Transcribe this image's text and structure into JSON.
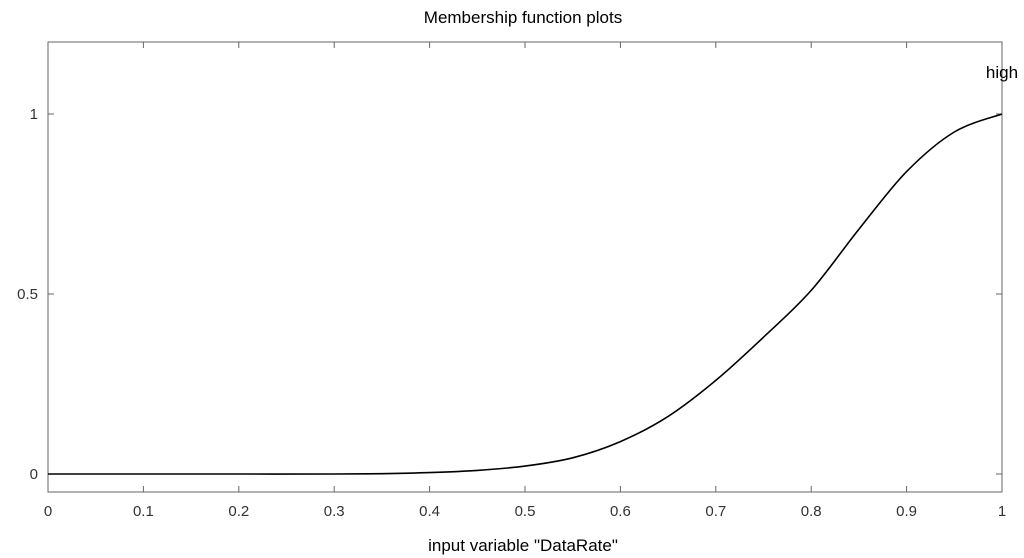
{
  "chart_data": {
    "type": "line",
    "title": "Membership function plots",
    "xlabel": "input variable \"DataRate\"",
    "ylabel": "",
    "xlim": [
      0,
      1
    ],
    "ylim": [
      -0.05,
      1.2
    ],
    "grid": false,
    "x_ticks": [
      "0",
      "0.1",
      "0.2",
      "0.3",
      "0.4",
      "0.5",
      "0.6",
      "0.7",
      "0.8",
      "0.9",
      "1"
    ],
    "y_ticks": [
      "0",
      "0.5",
      "1"
    ],
    "series": [
      {
        "name": "high",
        "x": [
          0,
          0.1,
          0.2,
          0.3,
          0.35,
          0.4,
          0.45,
          0.5,
          0.55,
          0.6,
          0.65,
          0.7,
          0.75,
          0.8,
          0.85,
          0.9,
          0.95,
          1.0
        ],
        "y": [
          0.0,
          0.0,
          0.0,
          0.0,
          0.001,
          0.004,
          0.01,
          0.022,
          0.045,
          0.09,
          0.16,
          0.26,
          0.38,
          0.51,
          0.68,
          0.84,
          0.95,
          1.0
        ]
      }
    ],
    "annotations": [
      {
        "text": "high",
        "x": 1.0,
        "y": 1.1
      }
    ],
    "colors": {
      "line": "#000000",
      "axis": "#666666",
      "background": "#ffffff"
    }
  }
}
